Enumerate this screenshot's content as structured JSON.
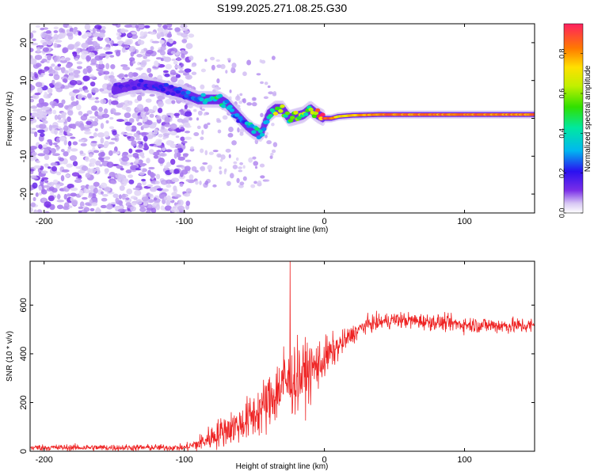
{
  "figure_title": "S199.2025.271.08.25.G30",
  "chart_data": [
    {
      "type": "heatmap",
      "title": "S199.2025.271.08.25.G30",
      "xlabel": "Height of straight line (km)",
      "ylabel": "Frequency (Hz)",
      "xlim": [
        -210,
        150
      ],
      "ylim": [
        -25,
        25
      ],
      "xticks": [
        -200,
        -100,
        0,
        100
      ],
      "yticks": [
        -20,
        -10,
        0,
        10,
        20
      ],
      "xtick_labels": [
        "-200",
        "-100",
        "0",
        "100"
      ],
      "ytick_labels": [
        "-20",
        "-10",
        "0",
        "10",
        "20"
      ],
      "colorbar": {
        "label": "Normalized spectral amplitude",
        "range": [
          0,
          0.95
        ],
        "ticks": [
          0.0,
          0.2,
          0.4,
          0.6,
          0.8
        ],
        "tick_labels": [
          "0.0",
          "0.2",
          "0.4",
          "0.6",
          "0.8"
        ]
      },
      "ridge": [
        {
          "x": -150,
          "freq": 7.5,
          "amp": 0.15
        },
        {
          "x": -140,
          "freq": 8.5,
          "amp": 0.15
        },
        {
          "x": -130,
          "freq": 9,
          "amp": 0.18
        },
        {
          "x": -120,
          "freq": 8.5,
          "amp": 0.2
        },
        {
          "x": -110,
          "freq": 7.5,
          "amp": 0.2
        },
        {
          "x": -100,
          "freq": 6.5,
          "amp": 0.22
        },
        {
          "x": -90,
          "freq": 5,
          "amp": 0.35
        },
        {
          "x": -80,
          "freq": 5,
          "amp": 0.4
        },
        {
          "x": -75,
          "freq": 5,
          "amp": 0.45
        },
        {
          "x": -70,
          "freq": 4,
          "amp": 0.3
        },
        {
          "x": -65,
          "freq": 2,
          "amp": 0.3
        },
        {
          "x": -60,
          "freq": 0,
          "amp": 0.25
        },
        {
          "x": -55,
          "freq": -2,
          "amp": 0.3
        },
        {
          "x": -50,
          "freq": -3.5,
          "amp": 0.45
        },
        {
          "x": -45,
          "freq": -4,
          "amp": 0.3
        },
        {
          "x": -40,
          "freq": 1,
          "amp": 0.3
        },
        {
          "x": -35,
          "freq": 2.5,
          "amp": 0.6
        },
        {
          "x": -30,
          "freq": 2.5,
          "amp": 0.6
        },
        {
          "x": -25,
          "freq": 0,
          "amp": 0.5
        },
        {
          "x": -20,
          "freq": 0.5,
          "amp": 0.6
        },
        {
          "x": -15,
          "freq": 1,
          "amp": 0.55
        },
        {
          "x": -10,
          "freq": 2.5,
          "amp": 0.5
        },
        {
          "x": -5,
          "freq": 1,
          "amp": 0.8
        },
        {
          "x": 0,
          "freq": 0,
          "amp": 0.9
        },
        {
          "x": 5,
          "freq": 0,
          "amp": 0.9
        },
        {
          "x": 10,
          "freq": 0.5,
          "amp": 0.7
        },
        {
          "x": 20,
          "freq": 0.8,
          "amp": 0.8
        },
        {
          "x": 40,
          "freq": 1,
          "amp": 0.85
        },
        {
          "x": 60,
          "freq": 1,
          "amp": 0.85
        },
        {
          "x": 80,
          "freq": 1,
          "amp": 0.85
        },
        {
          "x": 100,
          "freq": 1,
          "amp": 0.85
        },
        {
          "x": 120,
          "freq": 1,
          "amp": 0.85
        },
        {
          "x": 140,
          "freq": 1,
          "amp": 0.85
        },
        {
          "x": 150,
          "freq": 1,
          "amp": 0.85
        }
      ]
    },
    {
      "type": "line",
      "xlabel": "Height of straight line (km)",
      "ylabel": "SNR (10 * v/v)",
      "xlim": [
        -210,
        150
      ],
      "ylim": [
        0,
        780
      ],
      "xticks": [
        -200,
        -100,
        0,
        100
      ],
      "yticks": [
        0,
        200,
        400,
        600
      ],
      "xtick_labels": [
        "-200",
        "-100",
        "0",
        "100"
      ],
      "ytick_labels": [
        "0",
        "200",
        "400",
        "600"
      ],
      "series": [
        {
          "name": "SNR",
          "color": "#ee2222",
          "x": [
            -210,
            -150,
            -100,
            -90,
            -80,
            -70,
            -60,
            -50,
            -40,
            -35,
            -30,
            -25,
            -20,
            -10,
            0,
            10,
            20,
            30,
            50,
            80,
            100,
            130,
            150
          ],
          "mean": [
            15,
            15,
            15,
            30,
            60,
            90,
            110,
            150,
            200,
            240,
            270,
            290,
            300,
            330,
            380,
            430,
            480,
            520,
            540,
            530,
            520,
            515,
            515
          ],
          "spread": [
            12,
            12,
            12,
            30,
            50,
            60,
            70,
            90,
            110,
            120,
            130,
            130,
            130,
            110,
            80,
            50,
            35,
            30,
            30,
            30,
            30,
            30,
            30
          ]
        }
      ],
      "spikes": [
        {
          "x": -24.5,
          "y": 780
        },
        {
          "x": -29,
          "y": 430
        },
        {
          "x": -30.5,
          "y": 330
        },
        {
          "x": -3,
          "y": 330
        }
      ]
    }
  ]
}
